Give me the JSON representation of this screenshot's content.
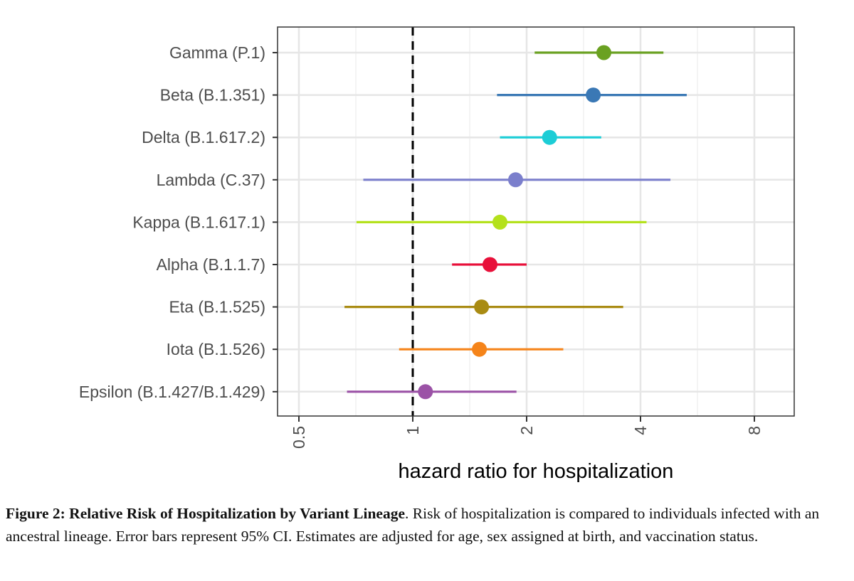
{
  "chart_data": {
    "type": "scatter",
    "subtype": "forest-plot",
    "title": "",
    "xlabel": "hazard ratio for hospitalization",
    "ylabel": "",
    "xscale": "log2",
    "xlim": [
      0.42,
      11
    ],
    "xticks": [
      0.5,
      1,
      2,
      4,
      8
    ],
    "xtick_labels": [
      "0.5",
      "1",
      "2",
      "4",
      "8"
    ],
    "reference_line": {
      "x": 1,
      "style": "dashed"
    },
    "grid": true,
    "legend": "none",
    "categories": [
      "Gamma (P.1)",
      "Beta (B.1.351)",
      "Delta (B.1.617.2)",
      "Lambda (C.37)",
      "Kappa (B.1.617.1)",
      "Alpha (B.1.1.7)",
      "Eta (B.1.525)",
      "Iota (B.1.526)",
      "Epsilon (B.1.427/B.1.429)"
    ],
    "series": [
      {
        "name": "Gamma (P.1)",
        "estimate": 3.2,
        "ci_low": 2.1,
        "ci_high": 4.6,
        "color": "#6aa121"
      },
      {
        "name": "Beta (B.1.351)",
        "estimate": 3.0,
        "ci_low": 1.67,
        "ci_high": 5.3,
        "color": "#3a78b5"
      },
      {
        "name": "Delta (B.1.617.2)",
        "estimate": 2.3,
        "ci_low": 1.7,
        "ci_high": 3.15,
        "color": "#1ccdd6"
      },
      {
        "name": "Lambda (C.37)",
        "estimate": 1.87,
        "ci_low": 0.74,
        "ci_high": 4.8,
        "color": "#7b7fcc"
      },
      {
        "name": "Kappa (B.1.617.1)",
        "estimate": 1.7,
        "ci_low": 0.71,
        "ci_high": 4.15,
        "color": "#b4e11c"
      },
      {
        "name": "Alpha (B.1.1.7)",
        "estimate": 1.6,
        "ci_low": 1.27,
        "ci_high": 2.0,
        "color": "#e8103a"
      },
      {
        "name": "Eta (B.1.525)",
        "estimate": 1.52,
        "ci_low": 0.66,
        "ci_high": 3.6,
        "color": "#a98b13"
      },
      {
        "name": "Iota (B.1.526)",
        "estimate": 1.5,
        "ci_low": 0.92,
        "ci_high": 2.5,
        "color": "#f5841a"
      },
      {
        "name": "Epsilon (B.1.427/B.1.429)",
        "estimate": 1.08,
        "ci_low": 0.67,
        "ci_high": 1.88,
        "color": "#9b52a6"
      }
    ]
  },
  "caption": {
    "bold": "Figure 2: Relative Risk of Hospitalization by Variant Lineage",
    "text": ". Risk of hospitalization is compared to individuals infected with an ancestral lineage. Error bars represent 95% CI. Estimates are adjusted for age, sex assigned at birth, and vaccination status."
  }
}
